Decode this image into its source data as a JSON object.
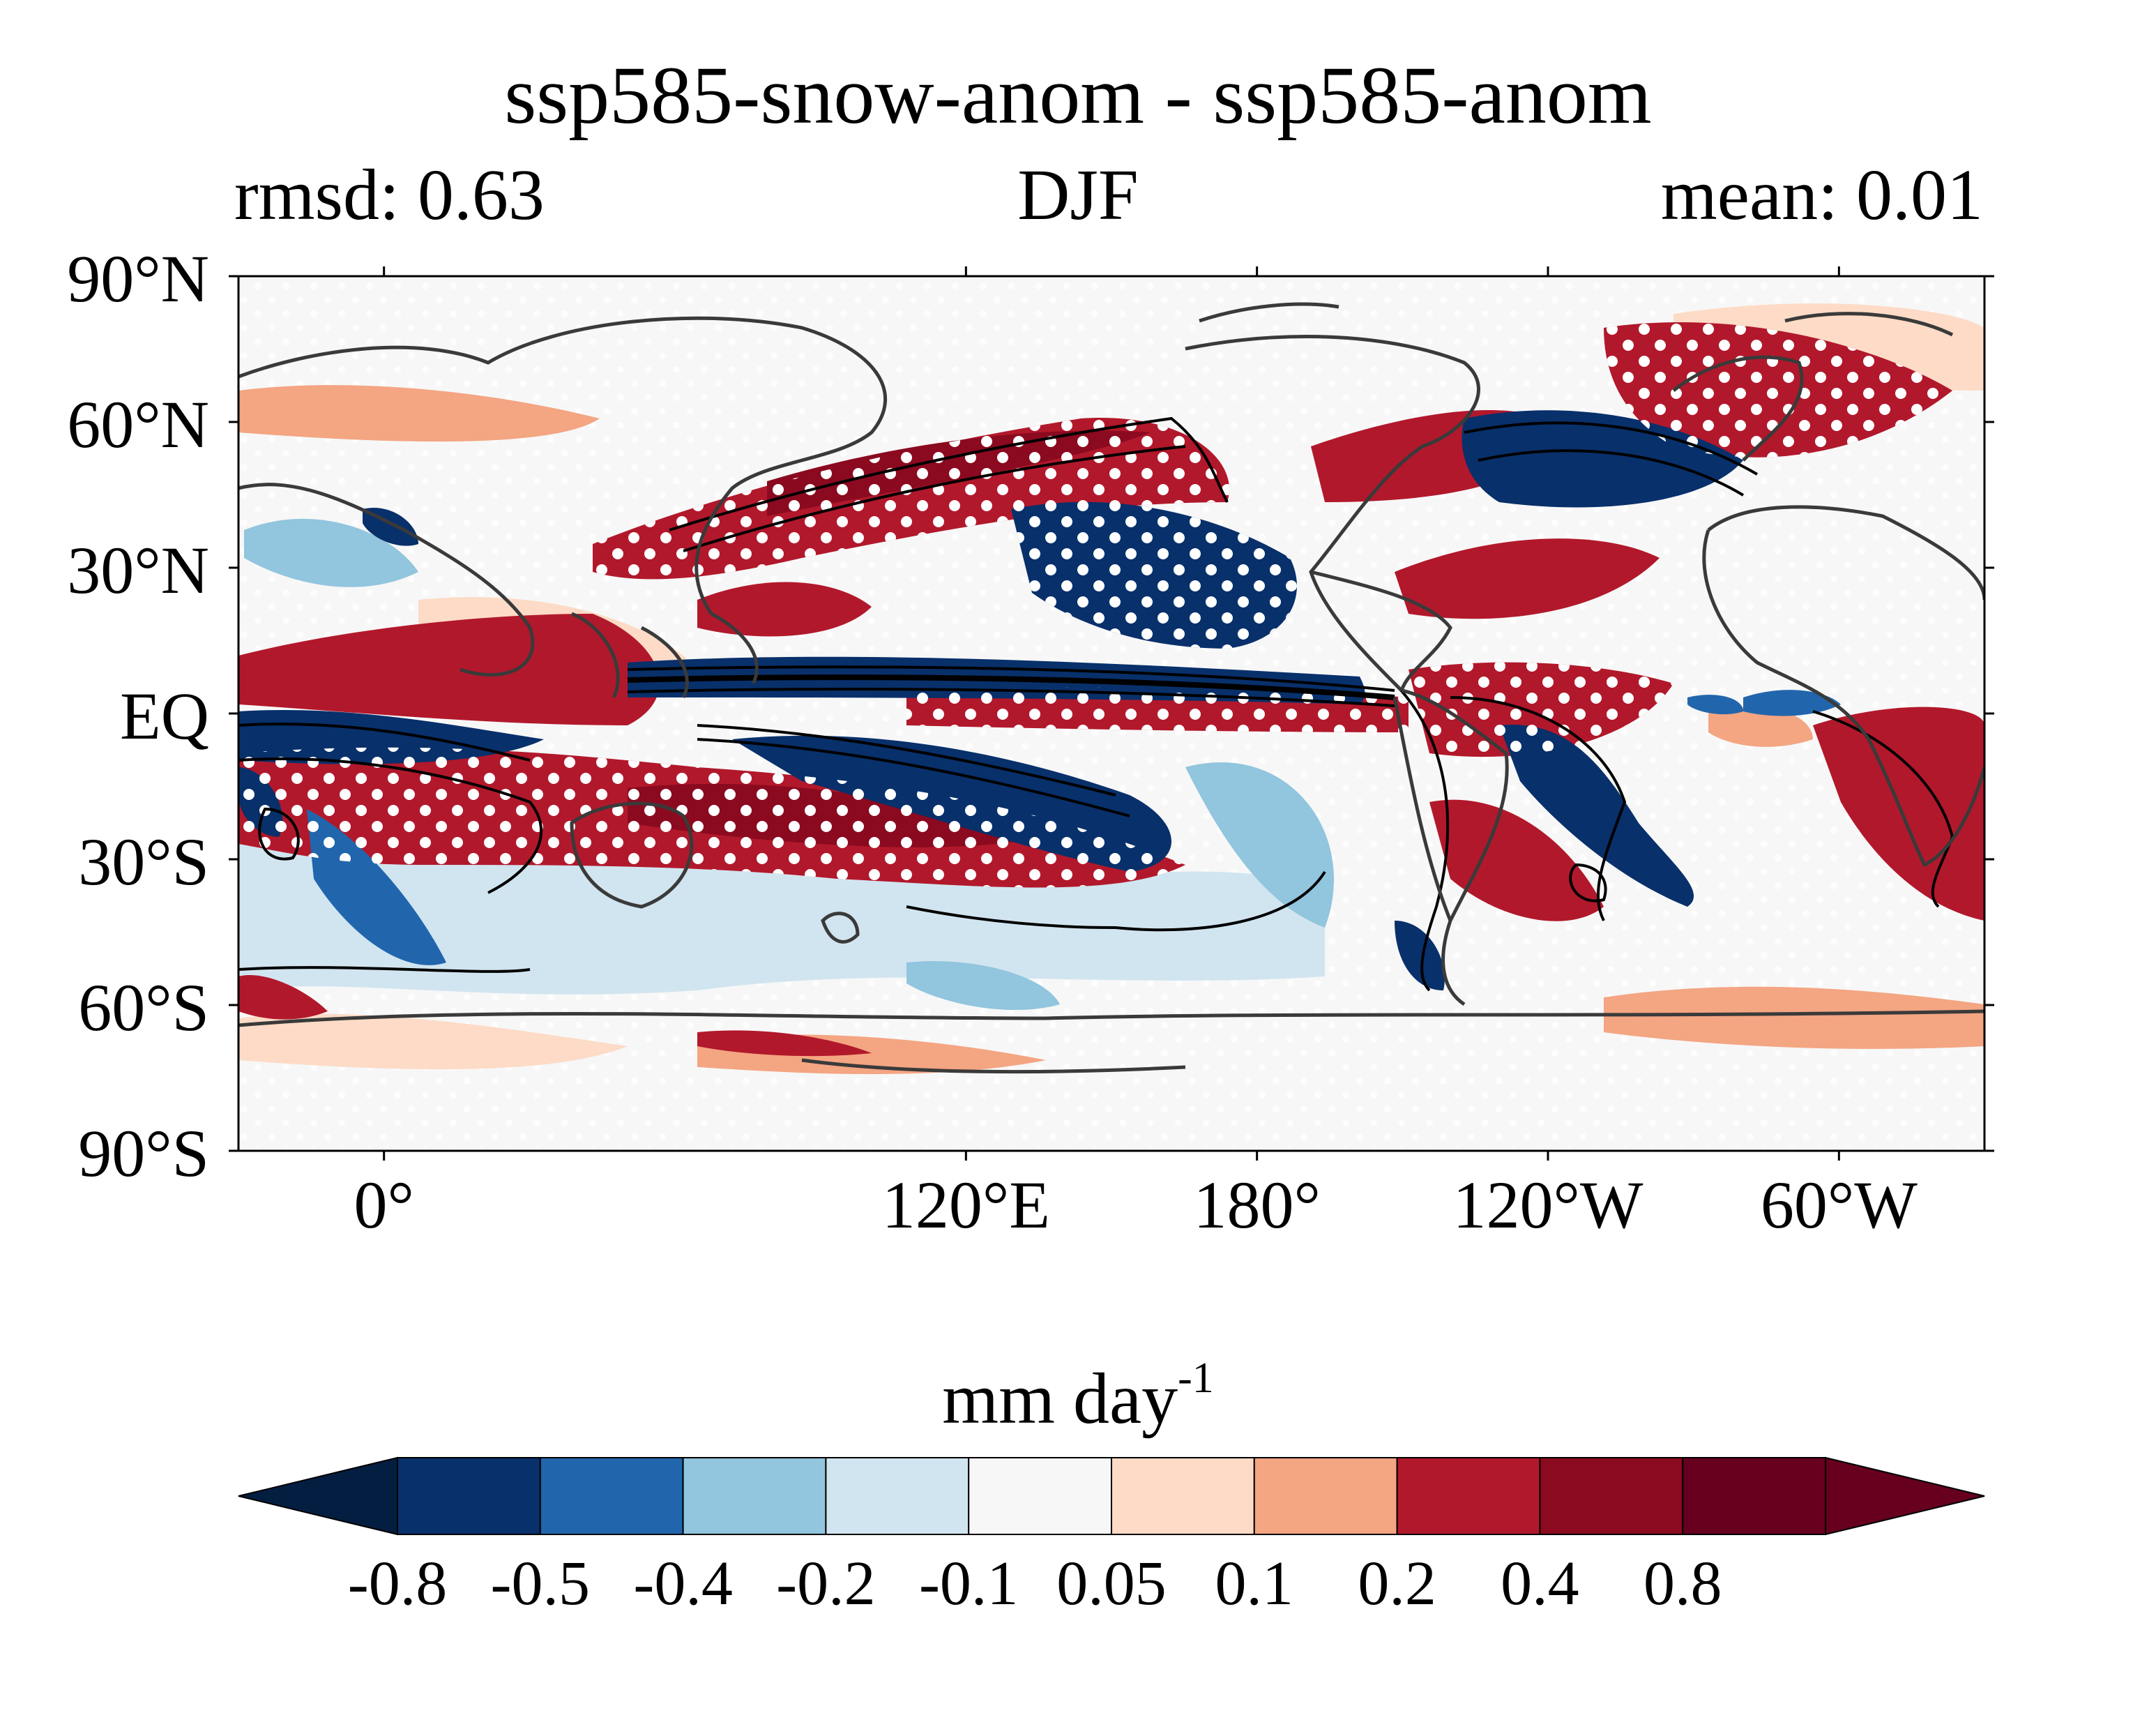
{
  "figure": {
    "title": "ssp585-snow-anom - ssp585-anom",
    "left_label": "rmsd: 0.63",
    "center_label": "DJF",
    "right_label": "mean: 0.01"
  },
  "map": {
    "projection": "PlateCarree",
    "central_longitude": 150,
    "lat_ticks": [
      "90°N",
      "60°N",
      "30°N",
      "EQ",
      "30°S",
      "60°S",
      "90°S"
    ],
    "lat_values": [
      90,
      60,
      30,
      0,
      -30,
      -60,
      -90
    ],
    "lon_ticks": [
      "120°E",
      "180°",
      "120°W",
      "60°W",
      "0°"
    ],
    "lon_values": [
      120,
      180,
      240,
      300,
      360
    ],
    "field": "precipitation difference",
    "stippling": "significant",
    "contours": "climatology (black lines)"
  },
  "colorbar": {
    "label_main": "mm day",
    "label_exp": "-1",
    "extend": "both",
    "boundaries": [
      "-0.8",
      "-0.5",
      "-0.4",
      "-0.2",
      "-0.1",
      "0.05",
      "0.1",
      "0.2",
      "0.4",
      "0.8"
    ],
    "colors": [
      "#08306b",
      "#2166ac",
      "#92c5de",
      "#d1e5f0",
      "#f7f7f7",
      "#fddbc7",
      "#f4a582",
      "#b2182b",
      "#8b0a1f",
      "#67001f"
    ],
    "under_color": "#041e42",
    "over_color": "#67001f"
  }
}
